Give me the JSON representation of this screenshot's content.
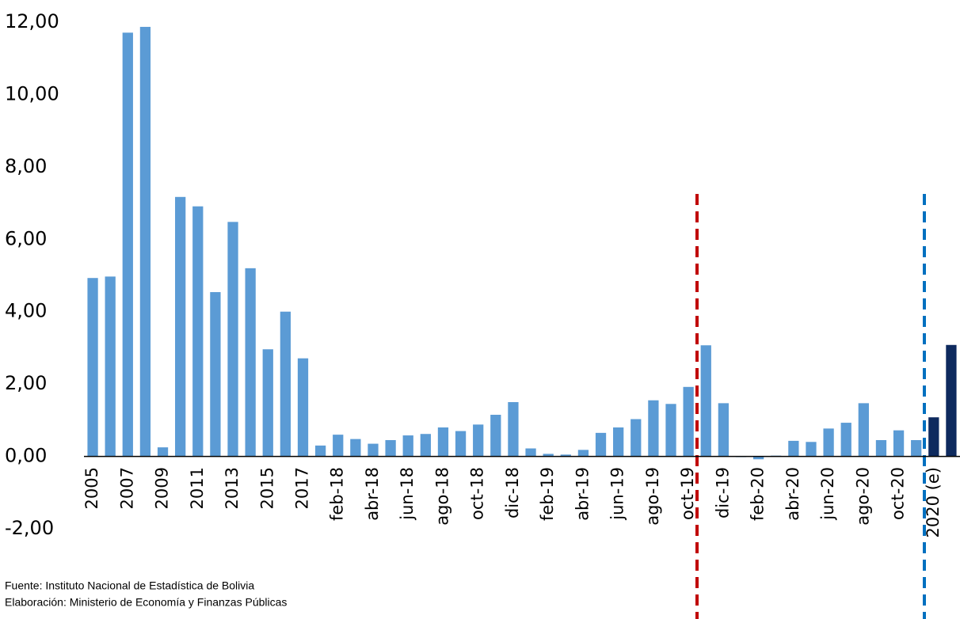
{
  "chart_data": {
    "type": "bar",
    "categories": [
      "2005",
      null,
      "2007",
      null,
      "2009",
      null,
      "2011",
      null,
      "2013",
      null,
      "2015",
      null,
      "2017",
      null,
      "feb-18",
      null,
      "abr-18",
      null,
      "jun-18",
      null,
      "ago-18",
      null,
      "oct-18",
      null,
      "dic-18",
      null,
      "feb-19",
      null,
      "abr-19",
      null,
      "jun-19",
      null,
      "ago-19",
      null,
      "oct-19",
      null,
      "dic-19",
      null,
      "feb-20",
      null,
      "abr-20",
      null,
      "jun-20",
      null,
      "ago-20",
      null,
      "oct-20",
      null,
      "2020 (e)",
      null
    ],
    "series": [
      {
        "color": "#5b9bd5",
        "values": [
          4.93,
          4.97,
          11.71,
          11.87,
          0.25,
          7.17,
          6.91,
          4.54,
          6.48,
          5.2,
          2.96,
          4.0,
          2.71,
          0.3,
          0.6,
          0.48,
          0.35,
          0.45,
          0.58,
          0.62,
          0.8,
          0.7,
          0.88,
          1.15,
          1.5,
          0.22,
          0.07,
          0.05,
          0.18,
          0.65,
          0.8,
          1.03,
          1.55,
          1.45,
          1.92,
          3.07,
          1.47,
          -0.02,
          -0.08,
          0.02,
          0.43,
          0.4,
          0.77,
          0.93,
          1.47,
          0.45,
          0.72,
          0.45,
          null,
          null
        ]
      },
      {
        "color": "#0e2a5e",
        "values": [
          null,
          null,
          null,
          null,
          null,
          null,
          null,
          null,
          null,
          null,
          null,
          null,
          null,
          null,
          null,
          null,
          null,
          null,
          null,
          null,
          null,
          null,
          null,
          null,
          null,
          null,
          null,
          null,
          null,
          null,
          null,
          null,
          null,
          null,
          null,
          null,
          null,
          null,
          null,
          null,
          null,
          null,
          null,
          null,
          null,
          null,
          null,
          null,
          1.08,
          3.08
        ]
      }
    ],
    "ylim": [
      -2,
      12
    ],
    "yticks": [
      {
        "value": -2,
        "label": "-2,00"
      },
      {
        "value": 0,
        "label": "0,00"
      },
      {
        "value": 2,
        "label": "2,00"
      },
      {
        "value": 4,
        "label": "4,00"
      },
      {
        "value": 6,
        "label": "6,00"
      },
      {
        "value": 8,
        "label": "8,00"
      },
      {
        "value": 10,
        "label": "10,00"
      },
      {
        "value": 12,
        "label": "12,00"
      }
    ],
    "grid": false,
    "notes": [
      "Fuente: Instituto Nacional de Estadística de Bolivia",
      "Elaboración: Ministerio de Economía y Finanzas Públicas"
    ]
  }
}
